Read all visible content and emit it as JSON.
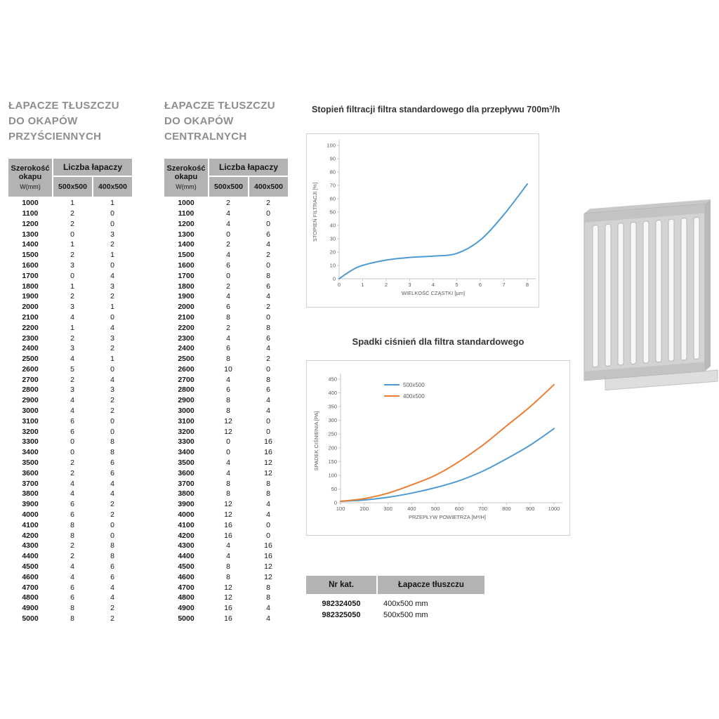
{
  "colors": {
    "series_blue": "#4e9bd4",
    "series_orange": "#ed7d31",
    "table_header_bg": "#b3b3b3",
    "title_gray": "#8e8e8e"
  },
  "wall_table": {
    "title_lines": [
      "ŁAPACZE TŁUSZCZU",
      "DO OKAPÓW",
      "PRZYŚCIENNYCH"
    ],
    "header": {
      "width_line1": "Szerokość",
      "width_line2": "okapu",
      "width_sub": "W(mm)",
      "group_label": "Liczba łapaczy",
      "col_500": "500x500",
      "col_400": "400x500"
    },
    "rows": [
      [
        1000,
        1,
        1
      ],
      [
        1100,
        2,
        0
      ],
      [
        1200,
        2,
        0
      ],
      [
        1300,
        0,
        3
      ],
      [
        1400,
        1,
        2
      ],
      [
        1500,
        2,
        1
      ],
      [
        1600,
        3,
        0
      ],
      [
        1700,
        0,
        4
      ],
      [
        1800,
        1,
        3
      ],
      [
        1900,
        2,
        2
      ],
      [
        2000,
        3,
        1
      ],
      [
        2100,
        4,
        0
      ],
      [
        2200,
        1,
        4
      ],
      [
        2300,
        2,
        3
      ],
      [
        2400,
        3,
        2
      ],
      [
        2500,
        4,
        1
      ],
      [
        2600,
        5,
        0
      ],
      [
        2700,
        2,
        4
      ],
      [
        2800,
        3,
        3
      ],
      [
        2900,
        4,
        2
      ],
      [
        3000,
        4,
        2
      ],
      [
        3100,
        6,
        0
      ],
      [
        3200,
        6,
        0
      ],
      [
        3300,
        0,
        8
      ],
      [
        3400,
        0,
        8
      ],
      [
        3500,
        2,
        6
      ],
      [
        3600,
        2,
        6
      ],
      [
        3700,
        4,
        4
      ],
      [
        3800,
        4,
        4
      ],
      [
        3900,
        6,
        2
      ],
      [
        4000,
        6,
        2
      ],
      [
        4100,
        8,
        0
      ],
      [
        4200,
        8,
        0
      ],
      [
        4300,
        2,
        8
      ],
      [
        4400,
        2,
        8
      ],
      [
        4500,
        4,
        6
      ],
      [
        4600,
        4,
        6
      ],
      [
        4700,
        6,
        4
      ],
      [
        4800,
        6,
        4
      ],
      [
        4900,
        8,
        2
      ],
      [
        5000,
        8,
        2
      ]
    ]
  },
  "central_table": {
    "title_lines": [
      "ŁAPACZE TŁUSZCZU",
      "DO OKAPÓW",
      "CENTRALNYCH"
    ],
    "header": {
      "width_line1": "Szerokość",
      "width_line2": "okapu",
      "width_sub": "W(mm)",
      "group_label": "Liczba łapaczy",
      "col_500": "500x500",
      "col_400": "400x500"
    },
    "rows": [
      [
        1000,
        2,
        2
      ],
      [
        1100,
        4,
        0
      ],
      [
        1200,
        4,
        0
      ],
      [
        1300,
        0,
        6
      ],
      [
        1400,
        2,
        4
      ],
      [
        1500,
        4,
        2
      ],
      [
        1600,
        6,
        0
      ],
      [
        1700,
        0,
        8
      ],
      [
        1800,
        2,
        6
      ],
      [
        1900,
        4,
        4
      ],
      [
        2000,
        6,
        2
      ],
      [
        2100,
        8,
        0
      ],
      [
        2200,
        2,
        8
      ],
      [
        2300,
        4,
        6
      ],
      [
        2400,
        6,
        4
      ],
      [
        2500,
        8,
        2
      ],
      [
        2600,
        10,
        0
      ],
      [
        2700,
        4,
        8
      ],
      [
        2800,
        6,
        6
      ],
      [
        2900,
        8,
        4
      ],
      [
        3000,
        8,
        4
      ],
      [
        3100,
        12,
        0
      ],
      [
        3200,
        12,
        0
      ],
      [
        3300,
        0,
        16
      ],
      [
        3400,
        0,
        16
      ],
      [
        3500,
        4,
        12
      ],
      [
        3600,
        4,
        12
      ],
      [
        3700,
        8,
        8
      ],
      [
        3800,
        8,
        8
      ],
      [
        3900,
        12,
        4
      ],
      [
        4000,
        12,
        4
      ],
      [
        4100,
        16,
        0
      ],
      [
        4200,
        16,
        0
      ],
      [
        4300,
        4,
        16
      ],
      [
        4400,
        4,
        16
      ],
      [
        4500,
        8,
        12
      ],
      [
        4600,
        8,
        12
      ],
      [
        4700,
        12,
        8
      ],
      [
        4800,
        12,
        8
      ],
      [
        4900,
        16,
        4
      ],
      [
        5000,
        16,
        4
      ]
    ]
  },
  "chart_data": [
    {
      "type": "line",
      "title": "Stopień filtracji filtra standardowego dla przepływu 700m³/h",
      "xlabel": "WIELKOŚĆ CZĄSTKI [µm]",
      "ylabel": "STOPIEŃ FILTRACJI [%]",
      "xlim": [
        0,
        8
      ],
      "ylim": [
        0,
        100
      ],
      "xticks": [
        0,
        1,
        2,
        3,
        4,
        5,
        6,
        7,
        8
      ],
      "yticks": [
        0,
        10,
        20,
        30,
        40,
        50,
        60,
        70,
        80,
        90,
        100
      ],
      "grid": false,
      "legend": false,
      "series": [
        {
          "name": "stopień filtracji",
          "color": "#4e9bd4",
          "x": [
            0,
            0.5,
            1,
            2,
            3,
            4,
            5,
            6,
            7,
            8
          ],
          "y": [
            0,
            6,
            10,
            14,
            16,
            17,
            19,
            29,
            48,
            71
          ]
        }
      ]
    },
    {
      "type": "line",
      "title": "Spadki ciśnień dla filtra standardowego",
      "xlabel": "PRZEPŁYW POWIETRZA [M³/H]",
      "ylabel": "SPADEK CIŚNIENIA [PA]",
      "xlim": [
        100,
        1000
      ],
      "ylim": [
        0,
        450
      ],
      "xticks": [
        100,
        200,
        300,
        400,
        500,
        600,
        700,
        800,
        900,
        1000
      ],
      "yticks": [
        0,
        50,
        100,
        150,
        200,
        250,
        300,
        350,
        400,
        450
      ],
      "grid": false,
      "legend": true,
      "legend_position": "top-left-inside",
      "series": [
        {
          "name": "500x500",
          "color": "#4e9bd4",
          "x": [
            100,
            200,
            300,
            400,
            500,
            600,
            700,
            800,
            900,
            1000
          ],
          "y": [
            5,
            10,
            20,
            35,
            55,
            80,
            115,
            160,
            210,
            270
          ]
        },
        {
          "name": "400x500",
          "color": "#ed7d31",
          "x": [
            100,
            200,
            300,
            400,
            500,
            600,
            700,
            800,
            900,
            1000
          ],
          "y": [
            5,
            15,
            35,
            65,
            100,
            150,
            210,
            280,
            350,
            430
          ]
        }
      ]
    }
  ],
  "catalog": {
    "col1": "Nr kat.",
    "col2": "Łapacze tłuszczu",
    "rows": [
      {
        "nr": "982324050",
        "size": "400x500 mm"
      },
      {
        "nr": "982325050",
        "size": "500x500 mm"
      }
    ]
  },
  "illustration": {
    "name": "baffle grease filter"
  }
}
